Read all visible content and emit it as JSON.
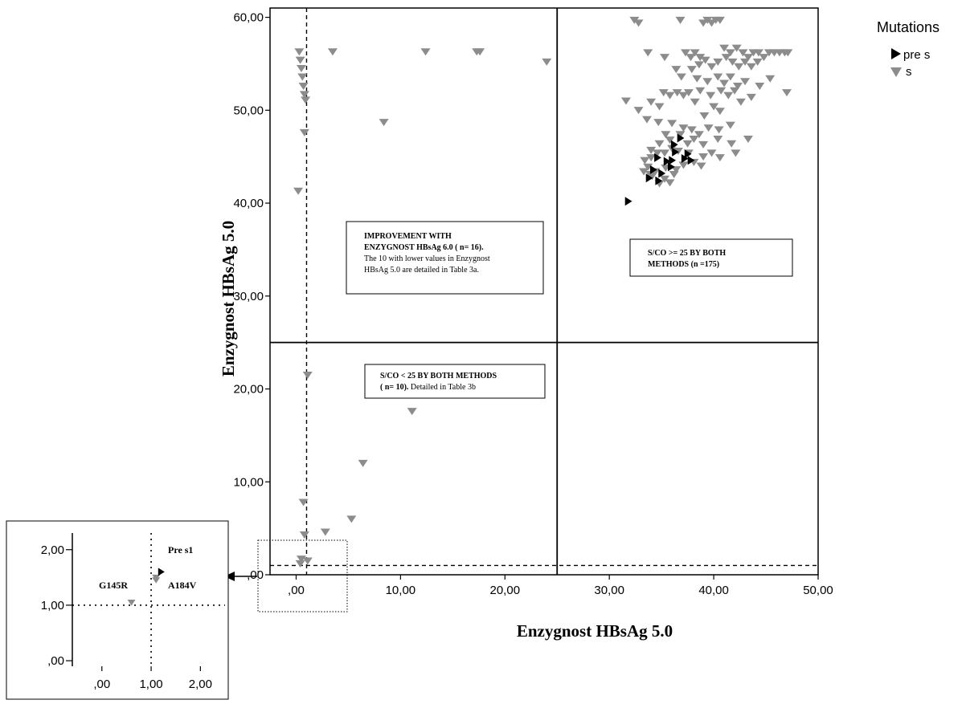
{
  "chart_data": [
    {
      "type": "scatter",
      "title": "",
      "xlabel": "Enzygnost HBsAg 5.0",
      "ylabel": "Enzygnost HBsAg 5.0",
      "xlim": [
        -2.5,
        50
      ],
      "ylim": [
        0,
        61
      ],
      "x_ticks": [
        ",00",
        "10,00",
        "20,00",
        "30,00",
        "40,00",
        "50,00"
      ],
      "y_ticks": [
        ",00",
        "10,00",
        "20,00",
        "30,00",
        "40,00",
        "50,00",
        "60,00"
      ],
      "legend": {
        "title": "Mutations",
        "position": "top-right",
        "entries": [
          {
            "label": "pre s",
            "marker": "triangle-right",
            "color": "#000000"
          },
          {
            "label": "s",
            "marker": "triangle-down",
            "color": "#8c8c8c"
          }
        ]
      },
      "reference_lines": [
        {
          "orientation": "vertical",
          "x": 25,
          "style": "solid"
        },
        {
          "orientation": "horizontal",
          "y": 25,
          "style": "solid"
        },
        {
          "orientation": "vertical",
          "x": 1,
          "style": "dashed"
        },
        {
          "orientation": "horizontal",
          "y": 1,
          "style": "dashed"
        }
      ],
      "annotations": [
        {
          "bold_lines": [
            "IMPROVEMENT WITH",
            "ENZYGNOST  HBsAg 6.0 ( n= 16)."
          ],
          "lines": [
            "The 10 with lower values in Enzygnost",
            "HBsAg 5.0  are detailed in Table 3a."
          ]
        },
        {
          "bold_lines": [
            "S/CO >= 25 BY BOTH",
            "METHODS (n =175)"
          ],
          "lines": []
        },
        {
          "bold_lines": [
            "S/CO < 25 BY BOTH METHODS"
          ],
          "mixed": {
            "bold": "( n= 10).",
            "normal": " Detailed in Table 3b"
          }
        }
      ],
      "series": [
        {
          "name": "pre s",
          "points": [
            [
              31.8,
              40.2
            ],
            [
              36.2,
              46.3
            ],
            [
              36.8,
              47.0
            ],
            [
              37.5,
              45.3
            ],
            [
              36.3,
              45.5
            ],
            [
              37.2,
              44.8
            ],
            [
              37.8,
              44.6
            ],
            [
              34.6,
              44.9
            ],
            [
              35.5,
              44.5
            ],
            [
              36.0,
              44.6
            ],
            [
              34.2,
              43.6
            ],
            [
              35.0,
              43.2
            ],
            [
              35.9,
              43.9
            ],
            [
              33.8,
              42.7
            ],
            [
              34.7,
              42.4
            ]
          ]
        },
        {
          "name": "s",
          "points": [
            [
              0.3,
              56.3
            ],
            [
              0.4,
              55.4
            ],
            [
              0.5,
              54.5
            ],
            [
              0.6,
              53.6
            ],
            [
              0.7,
              52.6
            ],
            [
              0.8,
              51.7
            ],
            [
              0.9,
              51.1
            ],
            [
              3.5,
              56.3
            ],
            [
              12.4,
              56.3
            ],
            [
              17.3,
              56.3
            ],
            [
              17.6,
              56.3
            ],
            [
              24.0,
              55.2
            ],
            [
              8.4,
              48.7
            ],
            [
              0.8,
              47.6
            ],
            [
              0.2,
              41.3
            ],
            [
              1.1,
              21.5
            ],
            [
              11.1,
              17.6
            ],
            [
              6.4,
              12.0
            ],
            [
              5.3,
              6.0
            ],
            [
              0.7,
              7.8
            ],
            [
              2.8,
              4.6
            ],
            [
              0.8,
              4.3
            ],
            [
              0.5,
              1.7
            ],
            [
              0.4,
              1.2
            ],
            [
              1.1,
              1.5
            ],
            [
              32.4,
              59.7
            ],
            [
              32.8,
              59.4
            ],
            [
              36.8,
              59.7
            ],
            [
              39.0,
              59.4
            ],
            [
              39.4,
              59.7
            ],
            [
              39.8,
              59.4
            ],
            [
              40.2,
              59.7
            ],
            [
              40.6,
              59.7
            ],
            [
              33.7,
              56.2
            ],
            [
              35.3,
              55.7
            ],
            [
              37.3,
              56.2
            ],
            [
              37.8,
              55.7
            ],
            [
              38.2,
              56.2
            ],
            [
              38.7,
              55.7
            ],
            [
              41.0,
              56.7
            ],
            [
              41.6,
              56.2
            ],
            [
              42.2,
              56.7
            ],
            [
              42.8,
              56.2
            ],
            [
              43.3,
              55.7
            ],
            [
              43.8,
              56.2
            ],
            [
              44.3,
              56.2
            ],
            [
              44.8,
              55.7
            ],
            [
              45.3,
              56.2
            ],
            [
              45.8,
              56.2
            ],
            [
              46.3,
              56.2
            ],
            [
              46.8,
              56.2
            ],
            [
              47.1,
              56.2
            ],
            [
              41.2,
              55.7
            ],
            [
              41.8,
              55.2
            ],
            [
              42.4,
              54.7
            ],
            [
              43.0,
              55.2
            ],
            [
              43.6,
              54.7
            ],
            [
              44.2,
              55.2
            ],
            [
              39.2,
              55.4
            ],
            [
              38.6,
              54.9
            ],
            [
              37.9,
              54.4
            ],
            [
              39.8,
              54.7
            ],
            [
              40.4,
              55.2
            ],
            [
              36.4,
              54.4
            ],
            [
              36.9,
              53.6
            ],
            [
              38.4,
              53.4
            ],
            [
              39.4,
              53.1
            ],
            [
              40.4,
              53.6
            ],
            [
              41.0,
              52.9
            ],
            [
              41.6,
              53.6
            ],
            [
              42.3,
              52.6
            ],
            [
              43.0,
              53.1
            ],
            [
              44.4,
              52.6
            ],
            [
              45.4,
              53.4
            ],
            [
              38.7,
              52.1
            ],
            [
              39.7,
              51.6
            ],
            [
              40.7,
              52.1
            ],
            [
              41.4,
              51.6
            ],
            [
              42.0,
              52.1
            ],
            [
              42.6,
              50.9
            ],
            [
              43.6,
              51.4
            ],
            [
              47.0,
              51.9
            ],
            [
              35.2,
              51.9
            ],
            [
              35.8,
              51.6
            ],
            [
              36.5,
              51.9
            ],
            [
              37.1,
              51.6
            ],
            [
              37.6,
              51.9
            ],
            [
              38.2,
              50.9
            ],
            [
              34.0,
              50.9
            ],
            [
              34.8,
              50.4
            ],
            [
              40.0,
              50.4
            ],
            [
              40.6,
              49.9
            ],
            [
              39.1,
              49.4
            ],
            [
              31.6,
              51.0
            ],
            [
              32.8,
              50.0
            ],
            [
              33.6,
              49.0
            ],
            [
              34.7,
              48.7
            ],
            [
              36.0,
              48.6
            ],
            [
              37.1,
              48.1
            ],
            [
              37.9,
              47.9
            ],
            [
              39.5,
              48.1
            ],
            [
              40.5,
              47.9
            ],
            [
              38.6,
              47.4
            ],
            [
              41.6,
              48.4
            ],
            [
              36.8,
              47.4
            ],
            [
              35.4,
              47.4
            ],
            [
              34.8,
              46.4
            ],
            [
              35.8,
              46.8
            ],
            [
              37.5,
              46.4
            ],
            [
              38.1,
              46.9
            ],
            [
              39.0,
              46.3
            ],
            [
              40.4,
              46.9
            ],
            [
              41.7,
              46.4
            ],
            [
              43.3,
              46.9
            ],
            [
              36.0,
              45.9
            ],
            [
              36.6,
              45.6
            ],
            [
              34.0,
              45.7
            ],
            [
              34.6,
              45.4
            ],
            [
              35.3,
              45.4
            ],
            [
              37.6,
              45.4
            ],
            [
              39.0,
              45.0
            ],
            [
              39.8,
              45.4
            ],
            [
              40.6,
              44.9
            ],
            [
              42.1,
              45.4
            ],
            [
              33.4,
              44.6
            ],
            [
              34.0,
              44.9
            ],
            [
              38.1,
              44.4
            ],
            [
              38.8,
              44.0
            ],
            [
              37.1,
              44.1
            ],
            [
              33.7,
              43.9
            ],
            [
              33.3,
              43.4
            ],
            [
              33.9,
              43.1
            ],
            [
              34.4,
              43.4
            ],
            [
              35.4,
              43.8
            ],
            [
              36.4,
              43.6
            ],
            [
              35.3,
              42.6
            ],
            [
              35.8,
              42.2
            ],
            [
              34.1,
              42.9
            ],
            [
              36.2,
              43.1
            ],
            [
              34.8,
              42.1
            ]
          ]
        }
      ]
    },
    {
      "type": "scatter",
      "title": "",
      "xlim": [
        -0.6,
        2.5
      ],
      "ylim": [
        -0.1,
        2.3
      ],
      "x_ticks": [
        ",00",
        "1,00",
        "2,00"
      ],
      "y_ticks": [
        ",00",
        "1,00",
        "2,00"
      ],
      "reference_lines": [
        {
          "orientation": "vertical",
          "x": 1,
          "style": "dotted"
        },
        {
          "orientation": "horizontal",
          "y": 1,
          "style": "dotted"
        }
      ],
      "labels": [
        "Pre s1",
        "G145R",
        "A184V"
      ],
      "series": [
        {
          "name": "pre s",
          "points": [
            [
              1.2,
              1.6
            ]
          ]
        },
        {
          "name": "s",
          "points": [
            [
              0.6,
              1.05
            ],
            [
              1.1,
              1.5
            ],
            [
              1.1,
              1.45
            ]
          ]
        }
      ]
    }
  ]
}
